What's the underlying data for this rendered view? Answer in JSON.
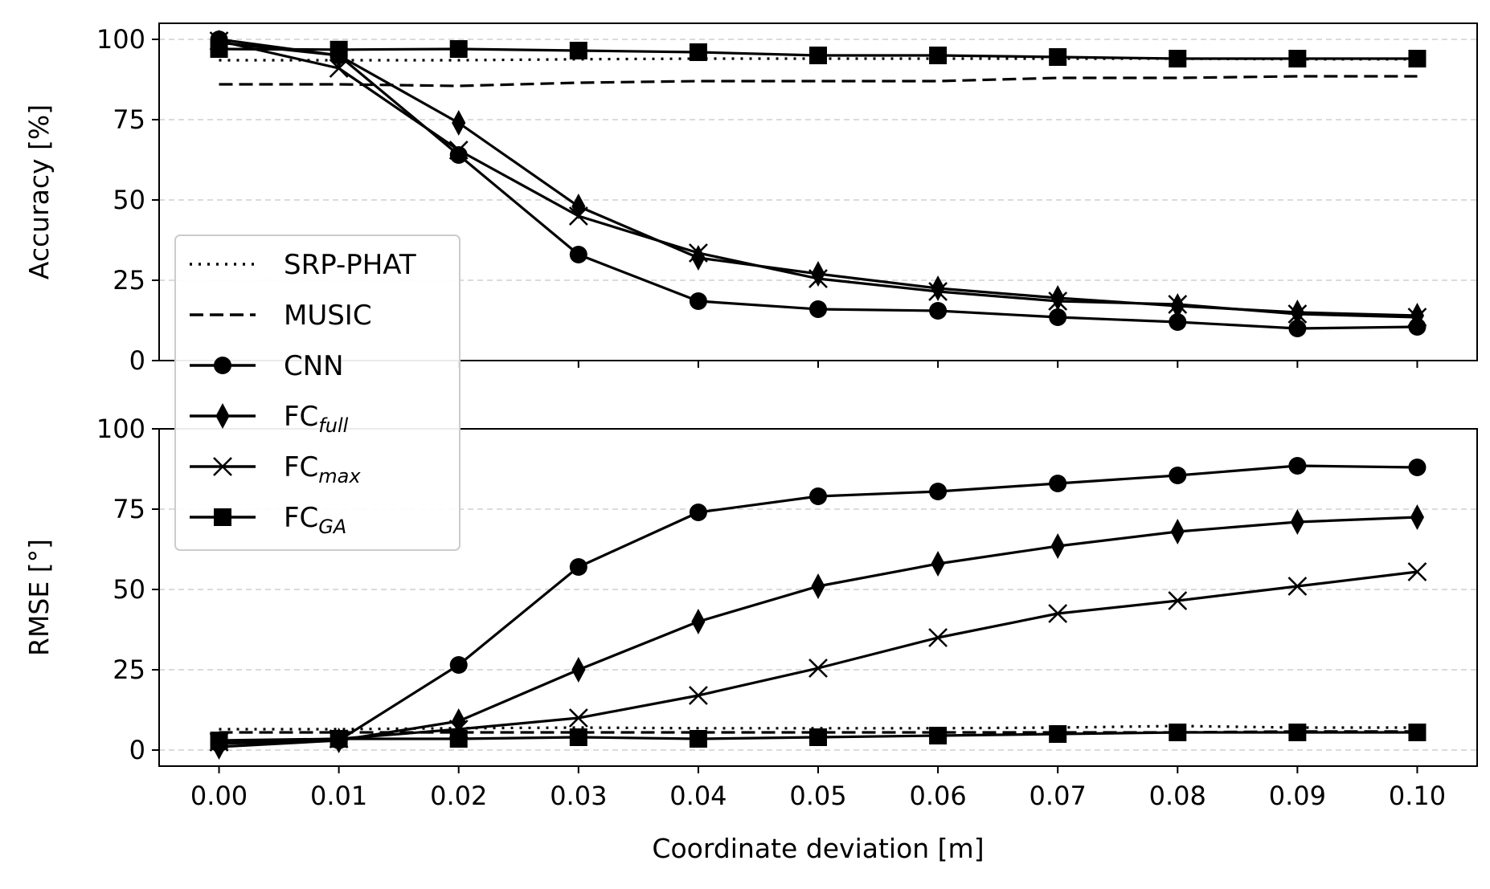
{
  "chart_data": [
    {
      "type": "line",
      "ylabel": "Accuracy [%]",
      "xlabel": "",
      "ylim": [
        0,
        105
      ],
      "yticks": [
        0,
        25,
        50,
        75,
        100
      ],
      "xlim": [
        -0.005,
        0.105
      ],
      "x": [
        0.0,
        0.01,
        0.02,
        0.03,
        0.04,
        0.05,
        0.06,
        0.07,
        0.08,
        0.09,
        0.1
      ],
      "grid": "horizontal dashed",
      "series": [
        {
          "name": "SRP-PHAT",
          "style": "dotted",
          "marker": "none",
          "values": [
            93.5,
            93.5,
            93.5,
            93.8,
            94,
            94,
            94,
            94,
            94,
            93.8,
            93.8
          ]
        },
        {
          "name": "MUSIC",
          "style": "dashed",
          "marker": "none",
          "values": [
            86,
            86,
            85.5,
            86.5,
            87,
            87,
            87,
            88,
            88,
            88.5,
            88.5
          ]
        },
        {
          "name": "CNN",
          "style": "solid",
          "marker": "circle",
          "values": [
            100,
            95,
            64,
            33,
            18.5,
            16,
            15.5,
            13.5,
            12,
            10,
            10.5
          ]
        },
        {
          "name": "FC_full",
          "style": "solid",
          "marker": "diamond",
          "values": [
            99,
            95,
            74,
            48,
            32,
            27,
            22.5,
            19.5,
            17,
            15,
            14
          ]
        },
        {
          "name": "FC_max",
          "style": "solid",
          "marker": "x",
          "values": [
            99.5,
            91,
            65.5,
            45,
            33.5,
            25.5,
            21.5,
            18.5,
            17.5,
            14.5,
            13.5
          ]
        },
        {
          "name": "FC_GA",
          "style": "solid",
          "marker": "square",
          "values": [
            97,
            96.8,
            97,
            96.5,
            96,
            95,
            95,
            94.5,
            94,
            94,
            94
          ]
        }
      ]
    },
    {
      "type": "line",
      "ylabel": "RMSE [°]",
      "xlabel": "Coordinate deviation [m]",
      "ylim": [
        -5,
        100
      ],
      "yticks": [
        0,
        25,
        50,
        75,
        100
      ],
      "xlim": [
        -0.005,
        0.105
      ],
      "xticks": [
        "0.00",
        "0.01",
        "0.02",
        "0.03",
        "0.04",
        "0.05",
        "0.06",
        "0.07",
        "0.08",
        "0.09",
        "0.10"
      ],
      "x": [
        0.0,
        0.01,
        0.02,
        0.03,
        0.04,
        0.05,
        0.06,
        0.07,
        0.08,
        0.09,
        0.1
      ],
      "grid": "horizontal dashed",
      "series": [
        {
          "name": "SRP-PHAT",
          "style": "dotted",
          "marker": "none",
          "values": [
            6.5,
            6.5,
            6.8,
            7,
            6.8,
            6.8,
            6.8,
            7,
            7.5,
            7,
            7
          ]
        },
        {
          "name": "MUSIC",
          "style": "dashed",
          "marker": "none",
          "values": [
            5.5,
            5.5,
            5.5,
            5.5,
            5.5,
            5.5,
            5.5,
            5.5,
            5.5,
            5.8,
            5.8
          ]
        },
        {
          "name": "CNN",
          "style": "solid",
          "marker": "circle",
          "values": [
            2,
            3,
            26.5,
            57,
            74,
            79,
            80.5,
            83,
            85.5,
            88.5,
            88
          ]
        },
        {
          "name": "FC_full",
          "style": "solid",
          "marker": "diamond",
          "values": [
            1,
            3,
            9,
            25,
            40,
            51,
            58,
            63.5,
            68,
            71,
            72.5
          ]
        },
        {
          "name": "FC_max",
          "style": "solid",
          "marker": "x",
          "values": [
            2.5,
            3.5,
            6.5,
            10,
            17,
            25.5,
            35,
            42.5,
            46.5,
            51,
            55.5
          ]
        },
        {
          "name": "FC_GA",
          "style": "solid",
          "marker": "square",
          "values": [
            3,
            3.5,
            3.5,
            4,
            3.5,
            4,
            4.5,
            5,
            5.5,
            5.5,
            5.5
          ]
        }
      ]
    }
  ],
  "legend": {
    "placement": "center-left",
    "entries": [
      {
        "key": "SRP-PHAT",
        "base": "SRP-PHAT",
        "sub": ""
      },
      {
        "key": "MUSIC",
        "base": "MUSIC",
        "sub": ""
      },
      {
        "key": "CNN",
        "base": "CNN",
        "sub": ""
      },
      {
        "key": "FC_full",
        "base": "FC",
        "sub": "full"
      },
      {
        "key": "FC_max",
        "base": "FC",
        "sub": "max"
      },
      {
        "key": "FC_GA",
        "base": "FC",
        "sub": "GA"
      }
    ]
  }
}
